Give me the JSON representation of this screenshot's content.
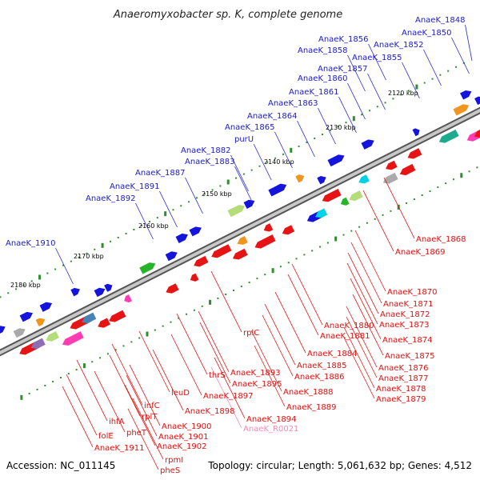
{
  "title": "Anaeromyxobacter sp. K, complete genome",
  "footer": {
    "accession": "Accession: NC_011145",
    "summary": "Topology: circular; Length: 5,061,632 bp; Genes: 4,512"
  },
  "scale_labels": [
    "2120 kbp",
    "2130 kbp",
    "2140 kbp",
    "2150 kbp",
    "2160 kbp",
    "2170 kbp",
    "2180 kbp"
  ],
  "top_labels": [
    "AnaeK_1848",
    "AnaeK_1850",
    "AnaeK_1856",
    "AnaeK_1852",
    "AnaeK_1858",
    "AnaeK_1855",
    "AnaeK_1857",
    "AnaeK_1860",
    "AnaeK_1861",
    "AnaeK_1863",
    "AnaeK_1864",
    "AnaeK_1865",
    "purU",
    "AnaeK_1882",
    "AnaeK_1883",
    "AnaeK_1887",
    "AnaeK_1891",
    "AnaeK_1892",
    "AnaeK_1910"
  ],
  "bottom_labels": [
    "AnaeK_1868",
    "AnaeK_1869",
    "AnaeK_1870",
    "AnaeK_1871",
    "AnaeK_1872",
    "AnaeK_1873",
    "AnaeK_1880",
    "AnaeK_1874",
    "AnaeK_1881",
    "rplC",
    "AnaeK_1875",
    "AnaeK_1884",
    "AnaeK_1876",
    "AnaeK_1885",
    "AnaeK_1877",
    "AnaeK_1886",
    "AnaeK_1878",
    "thrS",
    "AnaeK_1893",
    "AnaeK_1879",
    "AnaeK_1895",
    "AnaeK_1888",
    "leuD",
    "AnaeK_1897",
    "AnaeK_1889",
    "infC",
    "AnaeK_1898",
    "rplT",
    "AnaeK_1894",
    "ihfA",
    "AnaeK_1900",
    "pheT",
    "AnaeK_R0021",
    "folE",
    "AnaeK_1901",
    "AnaeK_1902",
    "AnaeK_1911",
    "rpmI",
    "pheS"
  ],
  "colors": {
    "forward_gene": "#1414dc",
    "reverse_gene": "#e61414",
    "rna_gene": "#f08cb4",
    "backbone": "#888888",
    "tick": "#2f8f2f"
  }
}
